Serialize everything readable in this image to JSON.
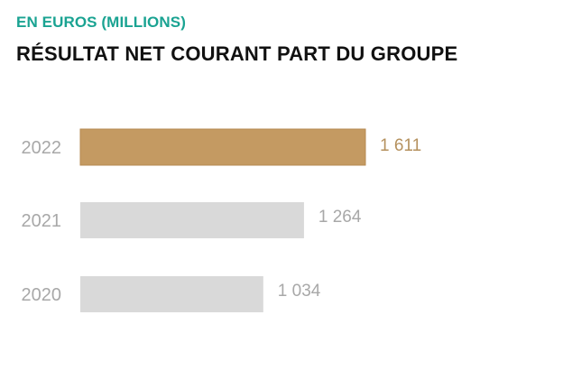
{
  "header": {
    "subtitle": "EN EUROS (MILLIONS)",
    "title": "RÉSULTAT NET COURANT PART DU GROUPE"
  },
  "colors": {
    "accent_teal": "#1aa392",
    "highlight_bar": "#c49a62",
    "default_bar": "#d9d9d9",
    "highlight_label": "#b5915e",
    "default_label": "#a8a8a8"
  },
  "chart_data": {
    "type": "bar",
    "orientation": "horizontal",
    "categories": [
      "2022",
      "2021",
      "2020"
    ],
    "values": [
      1611,
      1264,
      1034
    ],
    "value_labels": [
      "1 611",
      "1 264",
      "1 034"
    ],
    "highlight": "2022",
    "title": "RÉSULTAT NET COURANT PART DU GROUPE",
    "subtitle": "EN EUROS (MILLIONS)",
    "xlim": [
      0,
      1611
    ],
    "grid": false,
    "legend": "none"
  }
}
